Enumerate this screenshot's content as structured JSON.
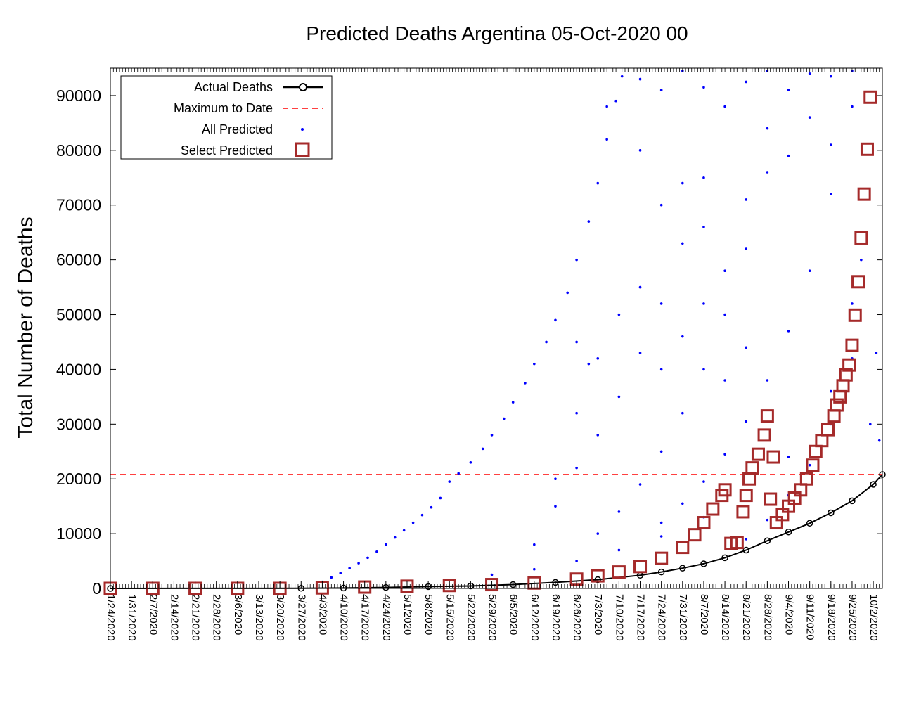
{
  "chart_data": {
    "type": "scatter",
    "title": "Predicted Deaths Argentina 05-Oct-2020 00",
    "xlabel": "",
    "ylabel": "Total Number of Deaths",
    "ylim": [
      0,
      95000
    ],
    "yticks": [
      0,
      10000,
      20000,
      30000,
      40000,
      50000,
      60000,
      70000,
      80000,
      90000
    ],
    "x_start": "1/24/2020",
    "x_end": "10/5/2020",
    "xtick_labels": [
      "1/24/2020",
      "1/31/2020",
      "2/7/2020",
      "2/14/2020",
      "2/21/2020",
      "2/28/2020",
      "3/6/2020",
      "3/13/2020",
      "3/20/2020",
      "3/27/2020",
      "4/3/2020",
      "4/10/2020",
      "4/17/2020",
      "4/24/2020",
      "5/1/2020",
      "5/8/2020",
      "5/15/2020",
      "5/22/2020",
      "5/29/2020",
      "6/5/2020",
      "6/12/2020",
      "6/19/2020",
      "6/26/2020",
      "7/3/2020",
      "7/10/2020",
      "7/17/2020",
      "7/24/2020",
      "7/31/2020",
      "8/7/2020",
      "8/14/2020",
      "8/21/2020",
      "8/28/2020",
      "9/4/2020",
      "9/11/2020",
      "9/18/2020",
      "9/25/2020",
      "10/2/2020"
    ],
    "grid": false,
    "legend_position": "top-left",
    "maximum_to_date": 20800,
    "series": [
      {
        "name": "Actual Deaths",
        "color": "#000000",
        "style": "line-circle",
        "points": [
          [
            "1/24/2020",
            0
          ],
          [
            "3/27/2020",
            30
          ],
          [
            "4/10/2020",
            80
          ],
          [
            "4/24/2020",
            180
          ],
          [
            "5/8/2020",
            330
          ],
          [
            "5/22/2020",
            450
          ],
          [
            "6/5/2020",
            700
          ],
          [
            "6/19/2020",
            1100
          ],
          [
            "7/3/2020",
            1600
          ],
          [
            "7/17/2020",
            2400
          ],
          [
            "7/24/2020",
            3000
          ],
          [
            "7/31/2020",
            3700
          ],
          [
            "8/7/2020",
            4500
          ],
          [
            "8/14/2020",
            5600
          ],
          [
            "8/21/2020",
            7000
          ],
          [
            "8/28/2020",
            8700
          ],
          [
            "9/4/2020",
            10300
          ],
          [
            "9/11/2020",
            11900
          ],
          [
            "9/18/2020",
            13800
          ],
          [
            "9/25/2020",
            16000
          ],
          [
            "10/2/2020",
            19000
          ],
          [
            "10/5/2020",
            20800
          ]
        ]
      },
      {
        "name": "Maximum to Date",
        "color": "#ff0000",
        "style": "dashed-line"
      },
      {
        "name": "All Predicted",
        "color": "#0000ff",
        "style": "dots",
        "points": [
          [
            "4/3/2020",
            1200
          ],
          [
            "4/6/2020",
            2000
          ],
          [
            "4/9/2020",
            2800
          ],
          [
            "4/12/2020",
            3700
          ],
          [
            "4/15/2020",
            4600
          ],
          [
            "4/18/2020",
            5600
          ],
          [
            "4/21/2020",
            6700
          ],
          [
            "4/24/2020",
            8000
          ],
          [
            "4/27/2020",
            9300
          ],
          [
            "4/30/2020",
            10600
          ],
          [
            "5/3/2020",
            12000
          ],
          [
            "5/6/2020",
            13400
          ],
          [
            "5/9/2020",
            14800
          ],
          [
            "5/12/2020",
            16500
          ],
          [
            "5/15/2020",
            19500
          ],
          [
            "5/18/2020",
            21000
          ],
          [
            "5/22/2020",
            23000
          ],
          [
            "5/26/2020",
            25500
          ],
          [
            "5/29/2020",
            28000
          ],
          [
            "6/2/2020",
            31000
          ],
          [
            "6/5/2020",
            34000
          ],
          [
            "6/9/2020",
            37500
          ],
          [
            "6/12/2020",
            41000
          ],
          [
            "6/16/2020",
            45000
          ],
          [
            "6/19/2020",
            49000
          ],
          [
            "6/23/2020",
            54000
          ],
          [
            "6/26/2020",
            60000
          ],
          [
            "6/30/2020",
            67000
          ],
          [
            "7/3/2020",
            74000
          ],
          [
            "7/6/2020",
            82000
          ],
          [
            "7/9/2020",
            89000
          ],
          [
            "7/11/2020",
            93500
          ],
          [
            "6/12/2020",
            8000
          ],
          [
            "6/19/2020",
            15000
          ],
          [
            "6/26/2020",
            22000
          ],
          [
            "7/3/2020",
            28000
          ],
          [
            "7/10/2020",
            35000
          ],
          [
            "7/17/2020",
            43000
          ],
          [
            "7/24/2020",
            52000
          ],
          [
            "7/31/2020",
            63000
          ],
          [
            "8/7/2020",
            75000
          ],
          [
            "8/14/2020",
            88000
          ],
          [
            "7/3/2020",
            10000
          ],
          [
            "7/10/2020",
            14000
          ],
          [
            "7/17/2020",
            19000
          ],
          [
            "7/24/2020",
            25000
          ],
          [
            "7/31/2020",
            32000
          ],
          [
            "8/7/2020",
            40000
          ],
          [
            "8/14/2020",
            50000
          ],
          [
            "8/21/2020",
            62000
          ],
          [
            "8/28/2020",
            76000
          ],
          [
            "9/4/2020",
            91000
          ],
          [
            "7/24/2020",
            12000
          ],
          [
            "7/31/2020",
            15500
          ],
          [
            "8/7/2020",
            19500
          ],
          [
            "8/14/2020",
            24500
          ],
          [
            "8/21/2020",
            30500
          ],
          [
            "8/28/2020",
            38000
          ],
          [
            "9/4/2020",
            47000
          ],
          [
            "9/11/2020",
            58000
          ],
          [
            "9/18/2020",
            72000
          ],
          [
            "9/25/2020",
            88000
          ],
          [
            "8/21/2020",
            9000
          ],
          [
            "8/28/2020",
            12500
          ],
          [
            "9/4/2020",
            17000
          ],
          [
            "9/11/2020",
            22500
          ],
          [
            "9/18/2020",
            30000
          ],
          [
            "9/25/2020",
            42000
          ],
          [
            "9/28/2020",
            60000
          ],
          [
            "10/1/2020",
            30000
          ],
          [
            "10/3/2020",
            43000
          ],
          [
            "10/4/2020",
            27000
          ],
          [
            "5/29/2020",
            2500
          ],
          [
            "6/12/2020",
            3500
          ],
          [
            "6/26/2020",
            5000
          ],
          [
            "7/10/2020",
            7000
          ],
          [
            "7/24/2020",
            9500
          ],
          [
            "8/7/2020",
            13000
          ],
          [
            "8/21/2020",
            18000
          ],
          [
            "9/4/2020",
            24000
          ],
          [
            "9/18/2020",
            36000
          ],
          [
            "9/25/2020",
            52000
          ],
          [
            "6/26/2020",
            45000
          ],
          [
            "6/30/2020",
            41000
          ],
          [
            "7/6/2020",
            88000
          ],
          [
            "7/17/2020",
            93000
          ],
          [
            "7/24/2020",
            91000
          ],
          [
            "7/31/2020",
            94500
          ],
          [
            "8/7/2020",
            91500
          ],
          [
            "8/21/2020",
            92500
          ],
          [
            "8/28/2020",
            94500
          ],
          [
            "9/11/2020",
            94000
          ],
          [
            "9/18/2020",
            93500
          ],
          [
            "9/25/2020",
            94500
          ],
          [
            "7/17/2020",
            80000
          ],
          [
            "7/24/2020",
            70000
          ],
          [
            "7/31/2020",
            74000
          ],
          [
            "8/7/2020",
            66000
          ],
          [
            "8/14/2020",
            58000
          ],
          [
            "8/21/2020",
            71000
          ],
          [
            "8/28/2020",
            84000
          ],
          [
            "9/4/2020",
            79000
          ],
          [
            "9/11/2020",
            86000
          ],
          [
            "9/18/2020",
            81000
          ],
          [
            "6/19/2020",
            20000
          ],
          [
            "6/26/2020",
            32000
          ],
          [
            "7/3/2020",
            42000
          ],
          [
            "7/10/2020",
            50000
          ],
          [
            "7/17/2020",
            55000
          ],
          [
            "7/24/2020",
            40000
          ],
          [
            "7/31/2020",
            46000
          ],
          [
            "8/7/2020",
            52000
          ],
          [
            "8/14/2020",
            38000
          ],
          [
            "8/21/2020",
            44000
          ]
        ]
      },
      {
        "name": "Select Predicted",
        "color": "#a52a2a",
        "style": "open-squares",
        "points": [
          [
            "1/24/2020",
            0
          ],
          [
            "2/7/2020",
            0
          ],
          [
            "2/21/2020",
            0
          ],
          [
            "3/6/2020",
            0
          ],
          [
            "3/20/2020",
            0
          ],
          [
            "4/3/2020",
            100
          ],
          [
            "4/17/2020",
            250
          ],
          [
            "5/1/2020",
            400
          ],
          [
            "5/15/2020",
            550
          ],
          [
            "5/29/2020",
            700
          ],
          [
            "6/12/2020",
            1000
          ],
          [
            "6/26/2020",
            1700
          ],
          [
            "7/3/2020",
            2300
          ],
          [
            "7/10/2020",
            3000
          ],
          [
            "7/17/2020",
            4000
          ],
          [
            "7/24/2020",
            5500
          ],
          [
            "7/31/2020",
            7500
          ],
          [
            "8/4/2020",
            9800
          ],
          [
            "8/7/2020",
            12000
          ],
          [
            "8/10/2020",
            14500
          ],
          [
            "8/13/2020",
            17000
          ],
          [
            "8/14/2020",
            18000
          ],
          [
            "8/16/2020",
            8200
          ],
          [
            "8/18/2020",
            8400
          ],
          [
            "8/20/2020",
            14000
          ],
          [
            "8/21/2020",
            17000
          ],
          [
            "8/22/2020",
            20000
          ],
          [
            "8/23/2020",
            22000
          ],
          [
            "8/25/2020",
            24500
          ],
          [
            "8/27/2020",
            28000
          ],
          [
            "8/28/2020",
            31500
          ],
          [
            "8/29/2020",
            16300
          ],
          [
            "8/30/2020",
            24000
          ],
          [
            "8/31/2020",
            12000
          ],
          [
            "9/2/2020",
            13500
          ],
          [
            "9/4/2020",
            15000
          ],
          [
            "9/6/2020",
            16500
          ],
          [
            "9/8/2020",
            18000
          ],
          [
            "9/10/2020",
            20000
          ],
          [
            "9/12/2020",
            22500
          ],
          [
            "9/13/2020",
            25000
          ],
          [
            "9/15/2020",
            27000
          ],
          [
            "9/17/2020",
            29000
          ],
          [
            "9/19/2020",
            31500
          ],
          [
            "9/20/2020",
            33500
          ],
          [
            "9/21/2020",
            35000
          ],
          [
            "9/22/2020",
            37000
          ],
          [
            "9/23/2020",
            39000
          ],
          [
            "9/24/2020",
            40800
          ],
          [
            "9/25/2020",
            44400
          ],
          [
            "9/26/2020",
            49900
          ],
          [
            "9/27/2020",
            56000
          ],
          [
            "9/28/2020",
            64000
          ],
          [
            "9/29/2020",
            72000
          ],
          [
            "9/30/2020",
            80200
          ],
          [
            "10/1/2020",
            89700
          ]
        ]
      }
    ]
  }
}
